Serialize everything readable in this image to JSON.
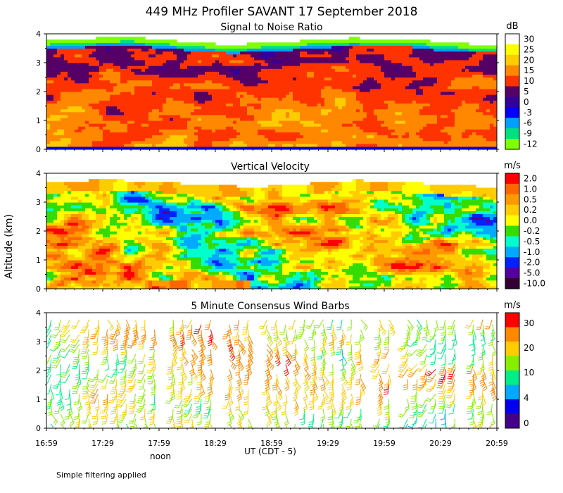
{
  "title": "449 MHz Profiler SAVANT 17 September 2018",
  "ylabel": "Altitude (km)",
  "xlabel": "UT (CDT - 5)",
  "noon_label": "noon",
  "footnote": "Simple filtering applied",
  "x_ticks": [
    "16:59",
    "17:29",
    "17:59",
    "18:29",
    "18:59",
    "19:29",
    "19:59",
    "20:29",
    "20:59"
  ],
  "y_ticks": [
    "0",
    "1",
    "2",
    "3",
    "4"
  ],
  "chart_data": [
    {
      "type": "heatmap",
      "title": "Signal to Noise Ratio",
      "colorbar_unit": "dB",
      "xlim": [
        "16:59",
        "20:59"
      ],
      "ylim": [
        0,
        4
      ],
      "colorbar_labels": [
        "30",
        "25",
        "20",
        "15",
        "10",
        "5",
        "0",
        "-3",
        "-6",
        "-9",
        "-12"
      ],
      "colorbar_colors": [
        "#ffffff",
        "#ffff00",
        "#ffcc00",
        "#ff8800",
        "#ff3300",
        "#550066",
        "#330099",
        "#0000ff",
        "#00a0ff",
        "#00e080",
        "#80ff00"
      ],
      "data_top_km": 3.7
    },
    {
      "type": "heatmap",
      "title": "Vertical Velocity",
      "colorbar_unit": "m/s",
      "xlim": [
        "16:59",
        "20:59"
      ],
      "ylim": [
        0,
        4
      ],
      "colorbar_labels": [
        "2.0",
        "1.0",
        "0.5",
        "0.2",
        "0.0",
        "-0.2",
        "-0.5",
        "-1.0",
        "-2.0",
        "-5.0",
        "-10.0"
      ],
      "colorbar_colors": [
        "#ff0000",
        "#ff6600",
        "#ff9900",
        "#ffcc00",
        "#ffff00",
        "#33dd00",
        "#00ffcc",
        "#00aaff",
        "#0022ff",
        "#550099",
        "#330033"
      ],
      "data_top_km": 3.6
    },
    {
      "type": "scatter",
      "title": "5 Minute Consensus Wind Barbs",
      "colorbar_unit": "m/s",
      "xlim": [
        "16:59",
        "20:59"
      ],
      "ylim": [
        0,
        4
      ],
      "colorbar_labels": [
        "30",
        "20",
        "10",
        "4",
        "0"
      ],
      "colorbar_colors": [
        "#ff0000",
        "#ff8800",
        "#ffcc00",
        "#88ee00",
        "#00ee88",
        "#00aaff",
        "#0000ee",
        "#440088"
      ]
    }
  ]
}
